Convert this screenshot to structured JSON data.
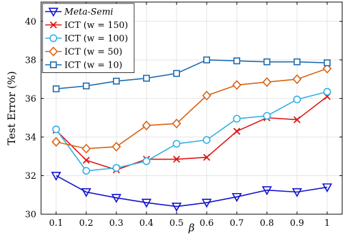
{
  "chart_data": {
    "type": "line",
    "xlabel": "β",
    "ylabel": "Test Error (%)",
    "x": [
      0.1,
      0.2,
      0.3,
      0.4,
      0.5,
      0.6,
      0.7,
      0.8,
      0.9,
      1
    ],
    "x_tick_labels": [
      "0.1",
      "0.2",
      "0.3",
      "0.4",
      "0.5",
      "0.6",
      "0.7",
      "0.8",
      "0.9",
      "1"
    ],
    "xlim": [
      0.05,
      1.05
    ],
    "ylim": [
      30,
      41
    ],
    "y_ticks": [
      30,
      32,
      34,
      36,
      38,
      40
    ],
    "y_tick_labels": [
      "30",
      "32",
      "34",
      "36",
      "38",
      "40"
    ],
    "grid": true,
    "legend_position": "top-left",
    "series": [
      {
        "name": "Meta-Semi",
        "italic": true,
        "color": "#1010d0",
        "marker": "triangle-down",
        "values": [
          32.0,
          31.15,
          30.85,
          30.6,
          30.4,
          30.6,
          30.9,
          31.25,
          31.15,
          31.4
        ]
      },
      {
        "name": "ICT (w = 150)",
        "color": "#e01010",
        "marker": "x",
        "values": [
          34.35,
          32.8,
          32.3,
          32.85,
          32.85,
          32.95,
          34.3,
          35.0,
          34.9,
          36.1
        ]
      },
      {
        "name": "ICT (w = 100)",
        "color": "#30b0e0",
        "marker": "circle",
        "values": [
          34.4,
          32.25,
          32.4,
          32.75,
          33.65,
          33.85,
          34.95,
          35.1,
          35.95,
          36.35
        ]
      },
      {
        "name": "ICT (w = 50)",
        "color": "#d86010",
        "marker": "diamond",
        "values": [
          33.75,
          33.4,
          33.5,
          34.6,
          34.7,
          36.15,
          36.7,
          36.85,
          37.0,
          37.55
        ]
      },
      {
        "name": "ICT (w = 10)",
        "color": "#1a6ab0",
        "marker": "square",
        "values": [
          36.5,
          36.65,
          36.9,
          37.05,
          37.3,
          38.0,
          37.95,
          37.9,
          37.9,
          37.85
        ]
      }
    ]
  }
}
